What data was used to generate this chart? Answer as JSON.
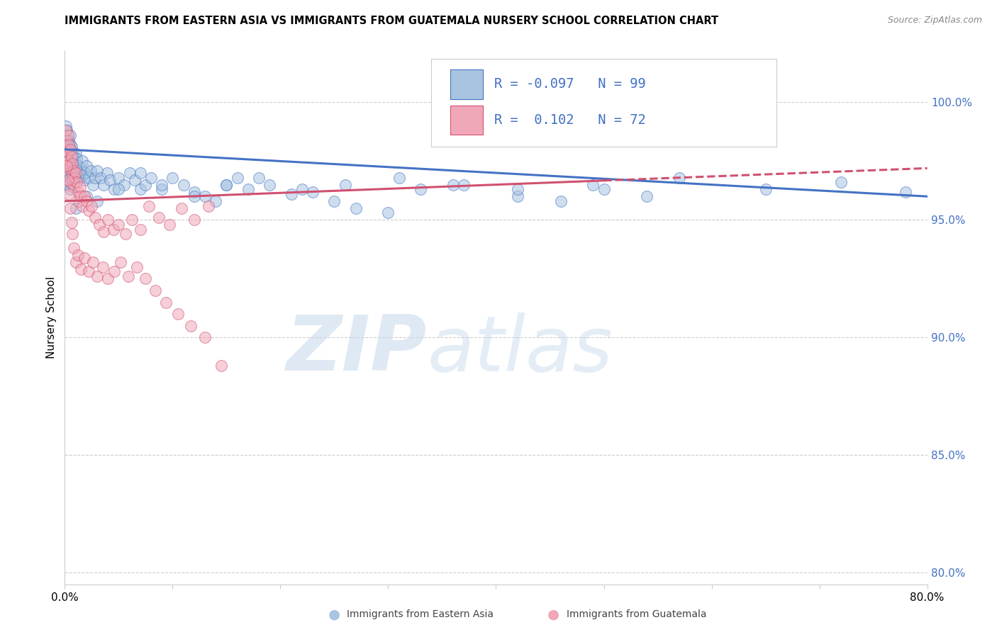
{
  "title": "IMMIGRANTS FROM EASTERN ASIA VS IMMIGRANTS FROM GUATEMALA NURSERY SCHOOL CORRELATION CHART",
  "source": "Source: ZipAtlas.com",
  "ylabel": "Nursery School",
  "x_min": 0.0,
  "x_max": 0.8,
  "y_min": 0.795,
  "y_max": 1.022,
  "y_ticks": [
    0.8,
    0.85,
    0.9,
    0.95,
    1.0
  ],
  "y_tick_labels": [
    "80.0%",
    "85.0%",
    "90.0%",
    "95.0%",
    "100.0%"
  ],
  "x_ticks": [
    0.0,
    0.1,
    0.2,
    0.3,
    0.4,
    0.5,
    0.6,
    0.7,
    0.8
  ],
  "x_tick_labels": [
    "0.0%",
    "",
    "",
    "",
    "",
    "",
    "",
    "",
    "80.0%"
  ],
  "R_blue": "-0.097",
  "N_blue": "99",
  "R_pink": "0.102",
  "N_pink": "72",
  "blue_scatter_x": [
    0.001,
    0.001,
    0.002,
    0.002,
    0.002,
    0.003,
    0.003,
    0.003,
    0.003,
    0.004,
    0.004,
    0.004,
    0.004,
    0.004,
    0.005,
    0.005,
    0.005,
    0.005,
    0.005,
    0.005,
    0.006,
    0.006,
    0.006,
    0.007,
    0.007,
    0.007,
    0.008,
    0.008,
    0.009,
    0.009,
    0.01,
    0.01,
    0.011,
    0.012,
    0.013,
    0.014,
    0.015,
    0.016,
    0.017,
    0.018,
    0.019,
    0.02,
    0.022,
    0.024,
    0.026,
    0.028,
    0.03,
    0.033,
    0.036,
    0.039,
    0.042,
    0.046,
    0.05,
    0.055,
    0.06,
    0.065,
    0.07,
    0.075,
    0.08,
    0.09,
    0.1,
    0.11,
    0.12,
    0.13,
    0.14,
    0.15,
    0.16,
    0.17,
    0.19,
    0.21,
    0.23,
    0.25,
    0.27,
    0.3,
    0.33,
    0.37,
    0.42,
    0.46,
    0.5,
    0.54,
    0.01,
    0.02,
    0.03,
    0.05,
    0.07,
    0.09,
    0.12,
    0.15,
    0.18,
    0.22,
    0.26,
    0.31,
    0.36,
    0.42,
    0.49,
    0.57,
    0.65,
    0.72,
    0.78
  ],
  "blue_scatter_y": [
    0.99,
    0.984,
    0.988,
    0.98,
    0.975,
    0.982,
    0.978,
    0.97,
    0.966,
    0.984,
    0.979,
    0.975,
    0.97,
    0.965,
    0.986,
    0.982,
    0.977,
    0.973,
    0.968,
    0.963,
    0.981,
    0.976,
    0.971,
    0.979,
    0.974,
    0.969,
    0.977,
    0.972,
    0.975,
    0.97,
    0.978,
    0.972,
    0.976,
    0.973,
    0.97,
    0.968,
    0.972,
    0.975,
    0.969,
    0.967,
    0.97,
    0.973,
    0.968,
    0.971,
    0.965,
    0.968,
    0.971,
    0.968,
    0.965,
    0.97,
    0.967,
    0.963,
    0.968,
    0.965,
    0.97,
    0.967,
    0.963,
    0.965,
    0.968,
    0.963,
    0.968,
    0.965,
    0.962,
    0.96,
    0.958,
    0.965,
    0.968,
    0.963,
    0.965,
    0.961,
    0.962,
    0.958,
    0.955,
    0.953,
    0.963,
    0.965,
    0.96,
    0.958,
    0.963,
    0.96,
    0.955,
    0.96,
    0.958,
    0.963,
    0.97,
    0.965,
    0.96,
    0.965,
    0.968,
    0.963,
    0.965,
    0.968,
    0.965,
    0.963,
    0.965,
    0.968,
    0.963,
    0.966,
    0.962
  ],
  "pink_scatter_x": [
    0.001,
    0.001,
    0.002,
    0.002,
    0.003,
    0.003,
    0.003,
    0.004,
    0.004,
    0.005,
    0.005,
    0.005,
    0.006,
    0.006,
    0.007,
    0.007,
    0.008,
    0.008,
    0.009,
    0.01,
    0.011,
    0.012,
    0.013,
    0.014,
    0.015,
    0.016,
    0.018,
    0.02,
    0.022,
    0.025,
    0.028,
    0.032,
    0.036,
    0.04,
    0.045,
    0.05,
    0.056,
    0.062,
    0.07,
    0.078,
    0.087,
    0.097,
    0.108,
    0.12,
    0.133,
    0.002,
    0.003,
    0.004,
    0.005,
    0.006,
    0.007,
    0.008,
    0.01,
    0.012,
    0.015,
    0.018,
    0.022,
    0.026,
    0.03,
    0.035,
    0.04,
    0.046,
    0.052,
    0.059,
    0.067,
    0.075,
    0.084,
    0.094,
    0.105,
    0.117,
    0.13,
    0.145
  ],
  "pink_scatter_y": [
    0.988,
    0.98,
    0.984,
    0.977,
    0.986,
    0.979,
    0.972,
    0.982,
    0.975,
    0.98,
    0.973,
    0.966,
    0.977,
    0.97,
    0.974,
    0.967,
    0.971,
    0.964,
    0.968,
    0.97,
    0.966,
    0.962,
    0.958,
    0.964,
    0.96,
    0.956,
    0.96,
    0.958,
    0.954,
    0.956,
    0.951,
    0.948,
    0.945,
    0.95,
    0.946,
    0.948,
    0.944,
    0.95,
    0.946,
    0.956,
    0.951,
    0.948,
    0.955,
    0.95,
    0.956,
    0.973,
    0.967,
    0.961,
    0.955,
    0.949,
    0.944,
    0.938,
    0.932,
    0.935,
    0.929,
    0.934,
    0.928,
    0.932,
    0.926,
    0.93,
    0.925,
    0.928,
    0.932,
    0.926,
    0.93,
    0.925,
    0.92,
    0.915,
    0.91,
    0.905,
    0.9,
    0.888
  ],
  "blue_line_x": [
    0.0,
    0.8
  ],
  "blue_line_y": [
    0.98,
    0.96
  ],
  "pink_line_x": [
    0.0,
    0.8
  ],
  "pink_line_y": [
    0.958,
    0.972
  ],
  "pink_line_solid_end": 0.5,
  "blue_color": "#4472c4",
  "pink_color": "#d05070",
  "blue_scatter_color": "#a8c4e0",
  "pink_scatter_color": "#f0a8b8",
  "watermark_zip": "ZIP",
  "watermark_atlas": "atlas",
  "background_color": "#ffffff",
  "grid_color": "#cccccc",
  "right_axis_color": "#4472c4",
  "legend_label_blue": "Immigrants from Eastern Asia",
  "legend_label_pink": "Immigrants from Guatemala"
}
